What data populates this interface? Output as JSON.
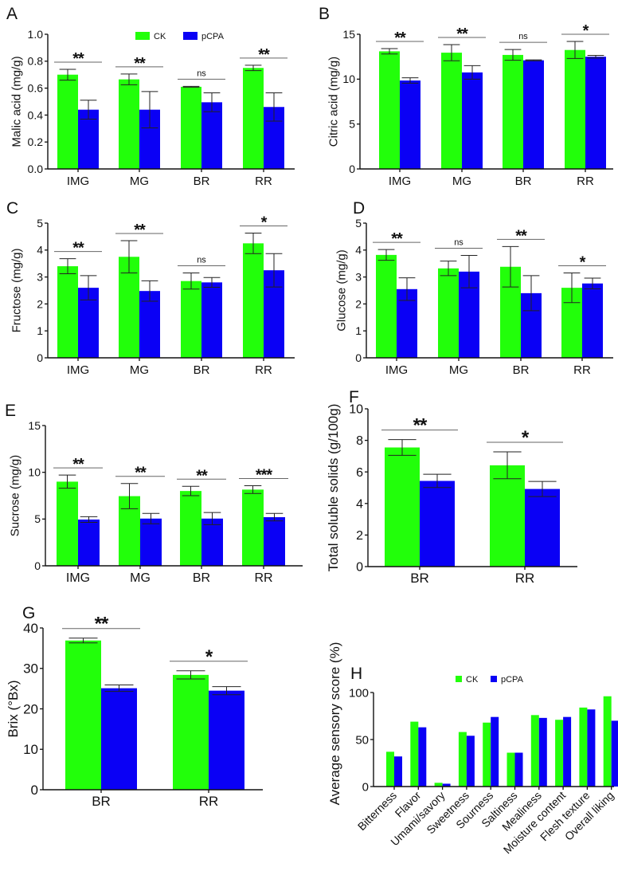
{
  "legend": {
    "ck": "CK",
    "pcpa": "pCPA"
  },
  "colors": {
    "ck": "#22ff0a",
    "pcpa": "#0a00f5",
    "axis": "#111111",
    "bracket": "#666666"
  },
  "chart_data": [
    {
      "panel": "A",
      "type": "bar",
      "ylabel": "Malic acid (mg/g)",
      "categories": [
        "IMG",
        "MG",
        "BR",
        "RR"
      ],
      "ylim": [
        0,
        1.0
      ],
      "yticks": [
        "0.0",
        "0.2",
        "0.4",
        "0.6",
        "0.8",
        "1.0"
      ],
      "ytick_values": [
        0,
        0.2,
        0.4,
        0.6,
        0.8,
        1.0
      ],
      "legend": "top-center",
      "series": [
        {
          "name": "CK",
          "values": [
            0.7,
            0.665,
            0.61,
            0.75
          ],
          "err": [
            0.04,
            0.04,
            0.003,
            0.02
          ]
        },
        {
          "name": "pCPA",
          "values": [
            0.44,
            0.44,
            0.495,
            0.46
          ],
          "err": [
            0.07,
            0.135,
            0.07,
            0.105
          ]
        }
      ],
      "significance": [
        "**",
        "**",
        "ns",
        "**"
      ]
    },
    {
      "panel": "B",
      "type": "bar",
      "ylabel": "Citric acid (mg/g)",
      "categories": [
        "IMG",
        "MG",
        "BR",
        "RR"
      ],
      "ylim": [
        0,
        15
      ],
      "yticks": [
        "0",
        "5",
        "10",
        "15"
      ],
      "ytick_values": [
        0,
        5,
        10,
        15
      ],
      "series": [
        {
          "name": "CK",
          "values": [
            13.1,
            12.95,
            12.7,
            13.25
          ],
          "err": [
            0.3,
            0.9,
            0.6,
            0.95
          ]
        },
        {
          "name": "pCPA",
          "values": [
            9.85,
            10.75,
            12.1,
            12.5
          ],
          "err": [
            0.3,
            0.75,
            0.05,
            0.15
          ]
        }
      ],
      "significance": [
        "**",
        "**",
        "ns",
        "*"
      ]
    },
    {
      "panel": "C",
      "type": "bar",
      "ylabel": "Fructose (mg/g)",
      "categories": [
        "IMG",
        "MG",
        "BR",
        "RR"
      ],
      "ylim": [
        0,
        5
      ],
      "yticks": [
        "0",
        "1",
        "2",
        "3",
        "4",
        "5"
      ],
      "ytick_values": [
        0,
        1,
        2,
        3,
        4,
        5
      ],
      "series": [
        {
          "name": "CK",
          "values": [
            3.4,
            3.75,
            2.85,
            4.25
          ],
          "err": [
            0.28,
            0.6,
            0.3,
            0.38
          ]
        },
        {
          "name": "pCPA",
          "values": [
            2.6,
            2.48,
            2.8,
            3.25
          ],
          "err": [
            0.45,
            0.38,
            0.18,
            0.62
          ]
        }
      ],
      "significance": [
        "**",
        "**",
        "ns",
        "*"
      ]
    },
    {
      "panel": "D",
      "type": "bar",
      "ylabel": "Glucose (mg/g)",
      "categories": [
        "IMG",
        "MG",
        "BR",
        "RR"
      ],
      "ylim": [
        0,
        5
      ],
      "yticks": [
        "0",
        "1",
        "2",
        "3",
        "4",
        "5"
      ],
      "ytick_values": [
        0,
        1,
        2,
        3,
        4,
        5
      ],
      "series": [
        {
          "name": "CK",
          "values": [
            3.82,
            3.32,
            3.38,
            2.6
          ],
          "err": [
            0.2,
            0.27,
            0.75,
            0.55
          ]
        },
        {
          "name": "pCPA",
          "values": [
            2.55,
            3.2,
            2.4,
            2.76
          ],
          "err": [
            0.42,
            0.6,
            0.65,
            0.2
          ]
        }
      ],
      "significance": [
        "**",
        "ns",
        "**",
        "*"
      ]
    },
    {
      "panel": "E",
      "type": "bar",
      "ylabel": "Sucrose (mg/g)",
      "categories": [
        "IMG",
        "MG",
        "BR",
        "RR"
      ],
      "ylim": [
        0,
        15
      ],
      "yticks": [
        "0",
        "5",
        "10",
        "15"
      ],
      "ytick_values": [
        0,
        5,
        10,
        15
      ],
      "series": [
        {
          "name": "CK",
          "values": [
            9.0,
            7.45,
            8.0,
            8.15
          ],
          "err": [
            0.7,
            1.35,
            0.5,
            0.42
          ]
        },
        {
          "name": "pCPA",
          "values": [
            4.95,
            5.05,
            5.05,
            5.2
          ],
          "err": [
            0.3,
            0.55,
            0.65,
            0.4
          ]
        }
      ],
      "significance": [
        "**",
        "**",
        "**",
        "***"
      ]
    },
    {
      "panel": "F",
      "type": "bar",
      "ylabel": "Total soluble solids (g/100g)",
      "categories": [
        "BR",
        "RR"
      ],
      "ylim": [
        0,
        10
      ],
      "yticks": [
        "0",
        "2",
        "4",
        "6",
        "8",
        "10"
      ],
      "ytick_values": [
        0,
        2,
        4,
        6,
        8,
        10
      ],
      "series": [
        {
          "name": "CK",
          "values": [
            7.55,
            6.42
          ],
          "err": [
            0.5,
            0.85
          ]
        },
        {
          "name": "pCPA",
          "values": [
            5.43,
            4.92
          ],
          "err": [
            0.42,
            0.48
          ]
        }
      ],
      "significance": [
        "**",
        "*"
      ]
    },
    {
      "panel": "G",
      "type": "bar",
      "ylabel": "Brix (°Bx)",
      "categories": [
        "BR",
        "RR"
      ],
      "ylim": [
        0,
        40
      ],
      "yticks": [
        "0",
        "10",
        "20",
        "30",
        "40"
      ],
      "ytick_values": [
        0,
        10,
        20,
        30,
        40
      ],
      "series": [
        {
          "name": "CK",
          "values": [
            36.9,
            28.4
          ],
          "err": [
            0.6,
            1.0
          ]
        },
        {
          "name": "pCPA",
          "values": [
            25.1,
            24.5
          ],
          "err": [
            0.8,
            1.0
          ]
        }
      ],
      "significance": [
        "**",
        "*"
      ]
    },
    {
      "panel": "H",
      "type": "bar",
      "ylabel": "Average sensory score (%)",
      "categories": [
        "Bitterness",
        "Flavor",
        "Umami/savory",
        "Sweetness",
        "Sourness",
        "Saltiness",
        "Mealiness",
        "Moisture content",
        "Flesh texture",
        "Overall liking"
      ],
      "ylim": [
        0,
        100
      ],
      "yticks": [
        "0",
        "50",
        "100"
      ],
      "ytick_values": [
        0,
        50,
        100
      ],
      "legend": "top-center",
      "series": [
        {
          "name": "CK",
          "values": [
            37,
            69,
            4,
            58,
            68,
            36,
            76,
            71,
            84,
            96
          ]
        },
        {
          "name": "pCPA",
          "values": [
            32,
            63,
            3,
            54,
            74,
            36,
            73,
            74,
            82,
            70
          ]
        }
      ]
    }
  ]
}
